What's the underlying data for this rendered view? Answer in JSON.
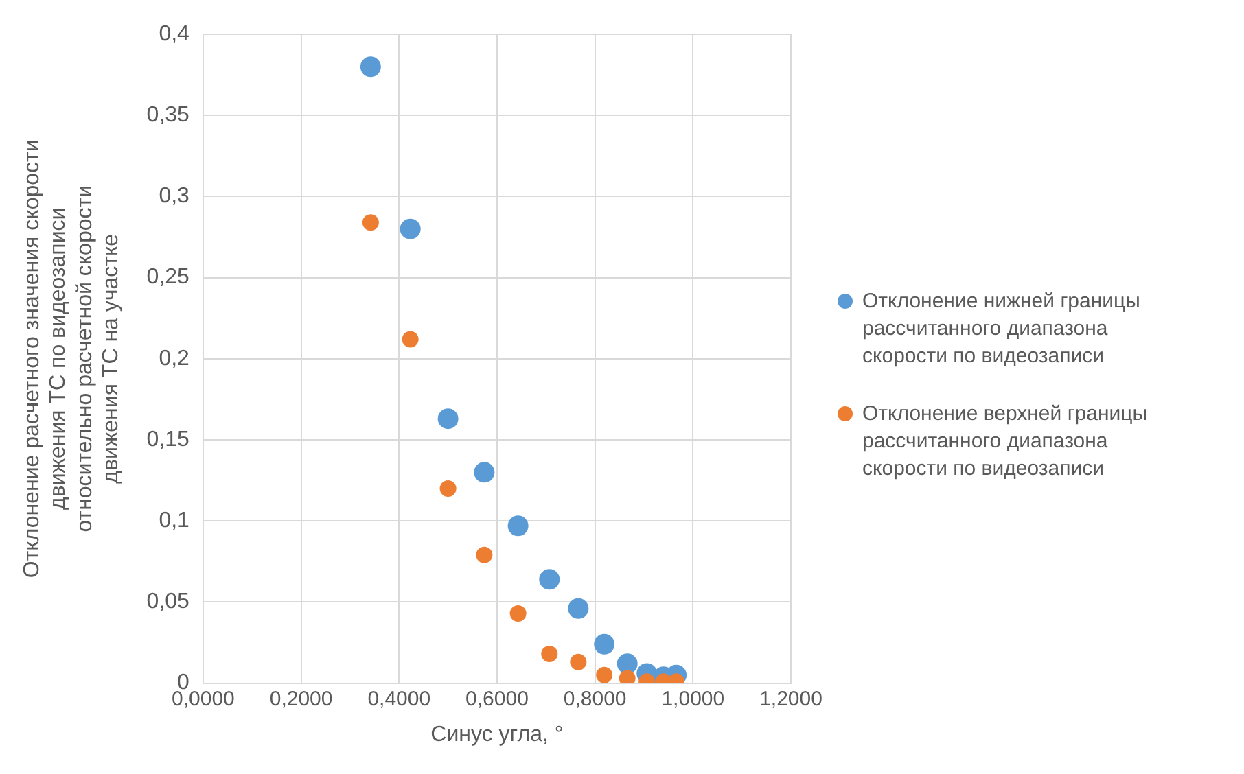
{
  "chart_data": {
    "type": "scatter",
    "xlabel": "Синус угла, °",
    "ylabel": "Отклонение расчетного значения скорости движения ТС по видеозаписи относительно расчетной скорости движения ТС на участке",
    "x": [
      0.342,
      0.423,
      0.5,
      0.574,
      0.643,
      0.707,
      0.766,
      0.819,
      0.866,
      0.906,
      0.94,
      0.966
    ],
    "series": [
      {
        "name": "Отклонение нижней границы рассчитанного диапазона скорости по видеозаписи",
        "color": "#5b9bd5",
        "values": [
          0.38,
          0.28,
          0.163,
          0.13,
          0.097,
          0.064,
          0.046,
          0.024,
          0.012,
          0.006,
          0.004,
          0.005
        ]
      },
      {
        "name": "Отклонение верхней границы рассчитанного диапазона скорости по видеозаписи",
        "color": "#ed7d31",
        "values": [
          0.284,
          0.212,
          0.12,
          0.079,
          0.043,
          0.018,
          0.013,
          0.005,
          0.003,
          0.001,
          0.001,
          0.001
        ]
      }
    ],
    "xlim": [
      0,
      1.2
    ],
    "ylim": [
      0,
      0.4
    ],
    "xticks": [
      {
        "value": 0,
        "label": "0,0000"
      },
      {
        "value": 0.2,
        "label": "0,2000"
      },
      {
        "value": 0.4,
        "label": "0,4000"
      },
      {
        "value": 0.6,
        "label": "0,6000"
      },
      {
        "value": 0.8,
        "label": "0,8000"
      },
      {
        "value": 1,
        "label": "1,0000"
      },
      {
        "value": 1.2,
        "label": "1,2000"
      }
    ],
    "yticks": [
      0,
      {
        "value": 0.05,
        "label": "0,05"
      },
      {
        "value": 0.1,
        "label": "0,1"
      },
      {
        "value": 0.15,
        "label": "0,15"
      },
      {
        "value": 0.2,
        "label": "0,2"
      },
      {
        "value": 0.25,
        "label": "0,25"
      },
      {
        "value": 0.3,
        "label": "0,3"
      },
      {
        "value": 0.35,
        "label": "0,35"
      },
      {
        "value": 0.4,
        "label": "0,4"
      }
    ],
    "grid": true,
    "legend": "right",
    "marker": "circle"
  }
}
